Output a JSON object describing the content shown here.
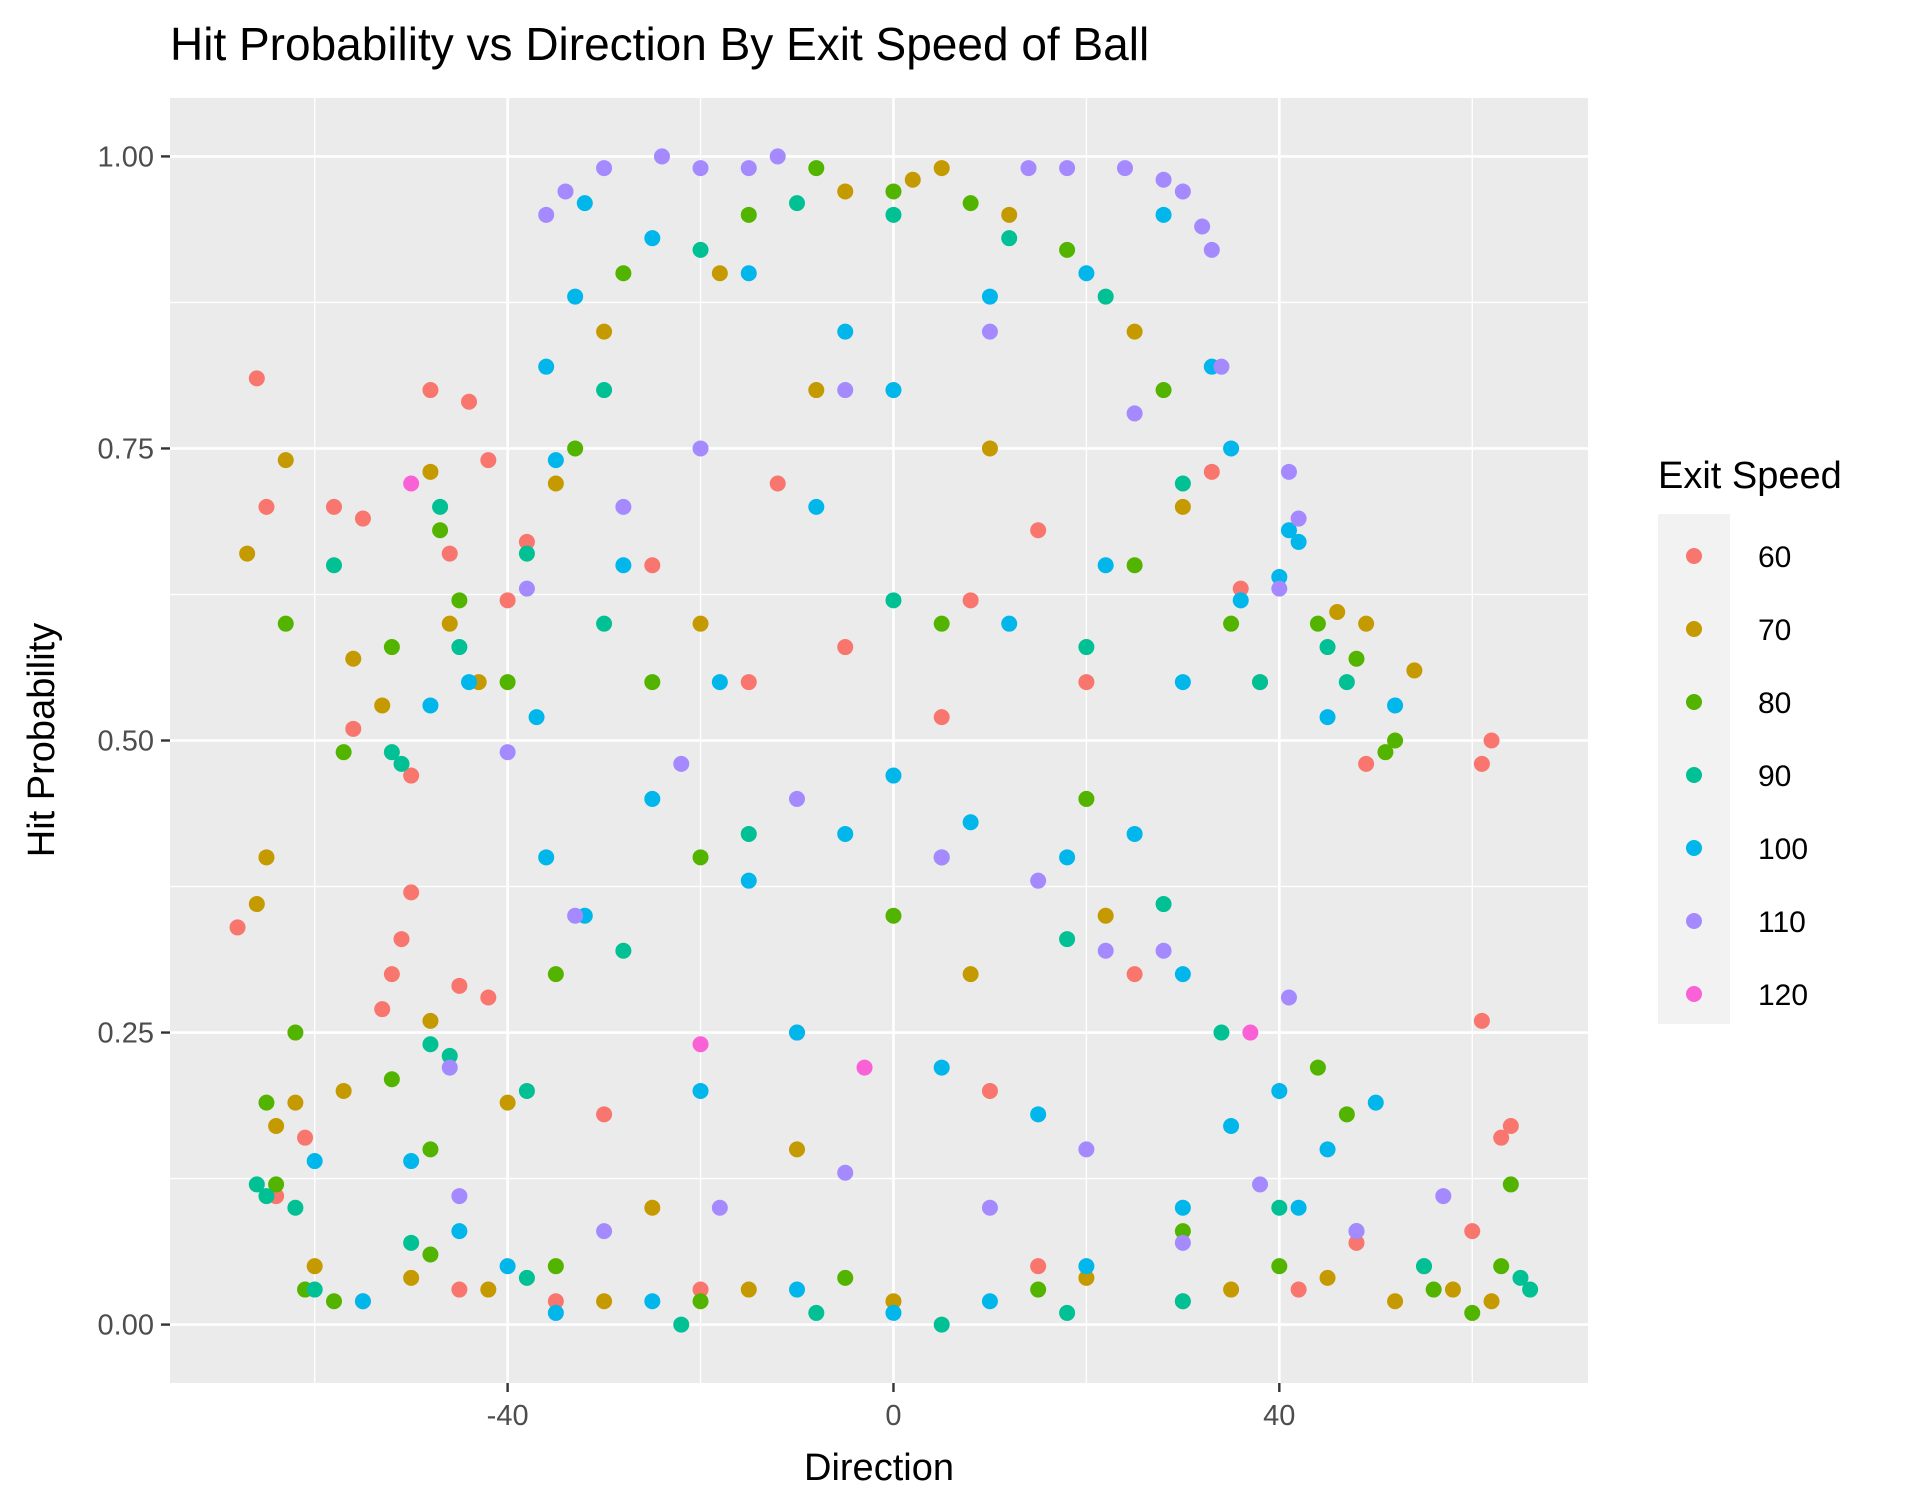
{
  "chart_data": {
    "type": "scatter",
    "title": "Hit Probability vs Direction By Exit Speed of Ball",
    "xlabel": "Direction",
    "ylabel": "Hit Probability",
    "xlim": [
      -75,
      72
    ],
    "ylim": [
      -0.05,
      1.05
    ],
    "x_ticks": [
      -40,
      0,
      40
    ],
    "x_tick_labels": [
      "-40",
      "0",
      "40"
    ],
    "y_ticks": [
      0,
      0.25,
      0.5,
      0.75,
      1.0
    ],
    "y_tick_labels": [
      "0.00",
      "0.25",
      "0.50",
      "0.75",
      "1.00"
    ],
    "grid": true,
    "legend": {
      "title": "Exit Speed",
      "position": "right",
      "entries": [
        {
          "label": "60",
          "color": "#F8766D"
        },
        {
          "label": "70",
          "color": "#C49A00"
        },
        {
          "label": "80",
          "color": "#53B400"
        },
        {
          "label": "90",
          "color": "#00C094"
        },
        {
          "label": "100",
          "color": "#00B6EB"
        },
        {
          "label": "110",
          "color": "#A58AFF"
        },
        {
          "label": "120",
          "color": "#FB61D7"
        }
      ]
    },
    "series": [
      {
        "name": "60",
        "color": "#F8766D",
        "points": [
          [
            -66,
            0.81
          ],
          [
            -65,
            0.7
          ],
          [
            -64,
            0.11
          ],
          [
            -68,
            0.34
          ],
          [
            -61,
            0.16
          ],
          [
            -55,
            0.69
          ],
          [
            -48,
            0.8
          ],
          [
            -44,
            0.79
          ],
          [
            -50,
            0.47
          ],
          [
            -56,
            0.51
          ],
          [
            -58,
            0.7
          ],
          [
            -52,
            0.3
          ],
          [
            -51,
            0.33
          ],
          [
            -42,
            0.74
          ],
          [
            -40,
            0.62
          ],
          [
            -46,
            0.66
          ],
          [
            -38,
            0.67
          ],
          [
            -12,
            0.72
          ],
          [
            -5,
            0.58
          ],
          [
            8,
            0.62
          ],
          [
            20,
            0.55
          ],
          [
            33,
            0.73
          ],
          [
            36,
            0.63
          ],
          [
            38,
            0.55
          ],
          [
            49,
            0.48
          ],
          [
            61,
            0.48
          ],
          [
            62,
            0.5
          ],
          [
            61,
            0.26
          ],
          [
            63,
            0.16
          ],
          [
            64,
            0.17
          ],
          [
            60,
            0.08
          ],
          [
            55,
            0.05
          ],
          [
            48,
            0.07
          ],
          [
            42,
            0.03
          ],
          [
            30,
            0.02
          ],
          [
            15,
            0.05
          ],
          [
            -20,
            0.03
          ],
          [
            -35,
            0.02
          ],
          [
            -45,
            0.03
          ],
          [
            -55,
            0.02
          ],
          [
            -45,
            0.29
          ],
          [
            -42,
            0.28
          ],
          [
            -50,
            0.37
          ],
          [
            -53,
            0.27
          ],
          [
            -30,
            0.18
          ],
          [
            -10,
            0.25
          ],
          [
            10,
            0.2
          ],
          [
            25,
            0.3
          ],
          [
            -25,
            0.65
          ],
          [
            -15,
            0.55
          ],
          [
            5,
            0.52
          ],
          [
            15,
            0.68
          ]
        ]
      },
      {
        "name": "70",
        "color": "#C49A00",
        "points": [
          [
            -67,
            0.66
          ],
          [
            -63,
            0.74
          ],
          [
            -65,
            0.4
          ],
          [
            -66,
            0.36
          ],
          [
            -64,
            0.17
          ],
          [
            -62,
            0.19
          ],
          [
            -56,
            0.57
          ],
          [
            -53,
            0.53
          ],
          [
            -48,
            0.73
          ],
          [
            -46,
            0.6
          ],
          [
            -43,
            0.55
          ],
          [
            -35,
            0.72
          ],
          [
            -30,
            0.85
          ],
          [
            -18,
            0.9
          ],
          [
            -5,
            0.97
          ],
          [
            2,
            0.98
          ],
          [
            5,
            0.99
          ],
          [
            12,
            0.95
          ],
          [
            25,
            0.85
          ],
          [
            30,
            0.7
          ],
          [
            46,
            0.61
          ],
          [
            49,
            0.6
          ],
          [
            54,
            0.56
          ],
          [
            62,
            0.02
          ],
          [
            58,
            0.03
          ],
          [
            52,
            0.02
          ],
          [
            45,
            0.04
          ],
          [
            35,
            0.03
          ],
          [
            20,
            0.04
          ],
          [
            0,
            0.02
          ],
          [
            -15,
            0.03
          ],
          [
            -30,
            0.02
          ],
          [
            -42,
            0.03
          ],
          [
            -50,
            0.04
          ],
          [
            -60,
            0.05
          ],
          [
            -57,
            0.2
          ],
          [
            -48,
            0.26
          ],
          [
            -40,
            0.19
          ],
          [
            -25,
            0.1
          ],
          [
            -10,
            0.15
          ],
          [
            8,
            0.3
          ],
          [
            22,
            0.35
          ],
          [
            -20,
            0.6
          ],
          [
            10,
            0.75
          ],
          [
            -8,
            0.8
          ]
        ]
      },
      {
        "name": "80",
        "color": "#53B400",
        "points": [
          [
            -63,
            0.6
          ],
          [
            -65,
            0.19
          ],
          [
            -62,
            0.25
          ],
          [
            -64,
            0.12
          ],
          [
            -57,
            0.49
          ],
          [
            -52,
            0.58
          ],
          [
            -47,
            0.68
          ],
          [
            -45,
            0.62
          ],
          [
            -40,
            0.55
          ],
          [
            -33,
            0.75
          ],
          [
            -28,
            0.9
          ],
          [
            -15,
            0.95
          ],
          [
            -8,
            0.99
          ],
          [
            0,
            0.97
          ],
          [
            8,
            0.96
          ],
          [
            18,
            0.92
          ],
          [
            28,
            0.8
          ],
          [
            35,
            0.6
          ],
          [
            44,
            0.6
          ],
          [
            48,
            0.57
          ],
          [
            51,
            0.49
          ],
          [
            52,
            0.5
          ],
          [
            64,
            0.12
          ],
          [
            63,
            0.05
          ],
          [
            60,
            0.01
          ],
          [
            56,
            0.03
          ],
          [
            47,
            0.18
          ],
          [
            44,
            0.22
          ],
          [
            40,
            0.05
          ],
          [
            30,
            0.08
          ],
          [
            15,
            0.03
          ],
          [
            -5,
            0.04
          ],
          [
            -20,
            0.02
          ],
          [
            -35,
            0.05
          ],
          [
            -48,
            0.06
          ],
          [
            -58,
            0.02
          ],
          [
            -61,
            0.03
          ],
          [
            -52,
            0.21
          ],
          [
            -48,
            0.15
          ],
          [
            -35,
            0.3
          ],
          [
            -20,
            0.4
          ],
          [
            0,
            0.35
          ],
          [
            20,
            0.45
          ],
          [
            -25,
            0.55
          ],
          [
            5,
            0.6
          ],
          [
            25,
            0.65
          ]
        ]
      },
      {
        "name": "90",
        "color": "#00C094",
        "points": [
          [
            -66,
            0.12
          ],
          [
            -65,
            0.11
          ],
          [
            -58,
            0.65
          ],
          [
            -52,
            0.49
          ],
          [
            -51,
            0.48
          ],
          [
            -47,
            0.7
          ],
          [
            -45,
            0.58
          ],
          [
            -38,
            0.66
          ],
          [
            -30,
            0.8
          ],
          [
            -20,
            0.92
          ],
          [
            -10,
            0.96
          ],
          [
            0,
            0.95
          ],
          [
            12,
            0.93
          ],
          [
            22,
            0.88
          ],
          [
            30,
            0.72
          ],
          [
            38,
            0.55
          ],
          [
            45,
            0.58
          ],
          [
            47,
            0.55
          ],
          [
            65,
            0.04
          ],
          [
            66,
            0.03
          ],
          [
            55,
            0.05
          ],
          [
            48,
            0.08
          ],
          [
            40,
            0.1
          ],
          [
            30,
            0.02
          ],
          [
            18,
            0.01
          ],
          [
            5,
            0.0
          ],
          [
            -8,
            0.01
          ],
          [
            -22,
            0.0
          ],
          [
            -38,
            0.04
          ],
          [
            -50,
            0.07
          ],
          [
            -60,
            0.03
          ],
          [
            -62,
            0.1
          ],
          [
            -48,
            0.24
          ],
          [
            -46,
            0.23
          ],
          [
            -38,
            0.2
          ],
          [
            -28,
            0.32
          ],
          [
            -15,
            0.42
          ],
          [
            5,
            0.4
          ],
          [
            18,
            0.33
          ],
          [
            28,
            0.36
          ],
          [
            34,
            0.25
          ],
          [
            -30,
            0.6
          ],
          [
            0,
            0.62
          ],
          [
            20,
            0.58
          ]
        ]
      },
      {
        "name": "100",
        "color": "#00B6EB",
        "points": [
          [
            -60,
            0.14
          ],
          [
            -48,
            0.53
          ],
          [
            -44,
            0.55
          ],
          [
            -37,
            0.52
          ],
          [
            -36,
            0.82
          ],
          [
            -35,
            0.74
          ],
          [
            -33,
            0.88
          ],
          [
            -32,
            0.96
          ],
          [
            -25,
            0.93
          ],
          [
            -15,
            0.9
          ],
          [
            -5,
            0.85
          ],
          [
            0,
            0.8
          ],
          [
            10,
            0.88
          ],
          [
            20,
            0.9
          ],
          [
            28,
            0.95
          ],
          [
            33,
            0.82
          ],
          [
            35,
            0.75
          ],
          [
            36,
            0.62
          ],
          [
            40,
            0.64
          ],
          [
            41,
            0.68
          ],
          [
            42,
            0.67
          ],
          [
            45,
            0.52
          ],
          [
            52,
            0.53
          ],
          [
            50,
            0.19
          ],
          [
            45,
            0.15
          ],
          [
            42,
            0.1
          ],
          [
            40,
            0.2
          ],
          [
            35,
            0.17
          ],
          [
            30,
            0.1
          ],
          [
            20,
            0.05
          ],
          [
            10,
            0.02
          ],
          [
            0,
            0.01
          ],
          [
            -10,
            0.03
          ],
          [
            -25,
            0.02
          ],
          [
            -35,
            0.01
          ],
          [
            -40,
            0.05
          ],
          [
            -45,
            0.08
          ],
          [
            -50,
            0.14
          ],
          [
            -55,
            0.02
          ],
          [
            -36,
            0.4
          ],
          [
            -32,
            0.35
          ],
          [
            -25,
            0.45
          ],
          [
            -15,
            0.38
          ],
          [
            -5,
            0.42
          ],
          [
            0,
            0.47
          ],
          [
            8,
            0.43
          ],
          [
            18,
            0.4
          ],
          [
            25,
            0.42
          ],
          [
            30,
            0.3
          ],
          [
            -20,
            0.2
          ],
          [
            -10,
            0.25
          ],
          [
            5,
            0.22
          ],
          [
            15,
            0.18
          ],
          [
            -28,
            0.65
          ],
          [
            -18,
            0.55
          ],
          [
            -8,
            0.7
          ],
          [
            12,
            0.6
          ],
          [
            22,
            0.65
          ],
          [
            30,
            0.55
          ]
        ]
      },
      {
        "name": "110",
        "color": "#A58AFF",
        "points": [
          [
            -46,
            0.22
          ],
          [
            -40,
            0.49
          ],
          [
            -38,
            0.63
          ],
          [
            -36,
            0.95
          ],
          [
            -34,
            0.97
          ],
          [
            -30,
            0.99
          ],
          [
            -24,
            1.0
          ],
          [
            -20,
            0.99
          ],
          [
            -15,
            0.99
          ],
          [
            -12,
            1.0
          ],
          [
            14,
            0.99
          ],
          [
            18,
            0.99
          ],
          [
            24,
            0.99
          ],
          [
            28,
            0.98
          ],
          [
            30,
            0.97
          ],
          [
            32,
            0.94
          ],
          [
            33,
            0.92
          ],
          [
            34,
            0.82
          ],
          [
            41,
            0.73
          ],
          [
            42,
            0.69
          ],
          [
            40,
            0.63
          ],
          [
            41,
            0.28
          ],
          [
            57,
            0.11
          ],
          [
            48,
            0.08
          ],
          [
            38,
            0.12
          ],
          [
            30,
            0.07
          ],
          [
            20,
            0.15
          ],
          [
            10,
            0.1
          ],
          [
            -5,
            0.13
          ],
          [
            -18,
            0.1
          ],
          [
            -30,
            0.08
          ],
          [
            -45,
            0.11
          ],
          [
            -33,
            0.35
          ],
          [
            -22,
            0.48
          ],
          [
            -10,
            0.45
          ],
          [
            5,
            0.4
          ],
          [
            15,
            0.38
          ],
          [
            22,
            0.32
          ],
          [
            28,
            0.32
          ],
          [
            -20,
            0.75
          ],
          [
            -5,
            0.8
          ],
          [
            10,
            0.85
          ],
          [
            25,
            0.78
          ],
          [
            -28,
            0.7
          ]
        ]
      },
      {
        "name": "120",
        "color": "#FB61D7",
        "points": [
          [
            -50,
            0.72
          ],
          [
            37,
            0.25
          ],
          [
            -3,
            0.22
          ],
          [
            -20,
            0.24
          ]
        ]
      }
    ]
  }
}
